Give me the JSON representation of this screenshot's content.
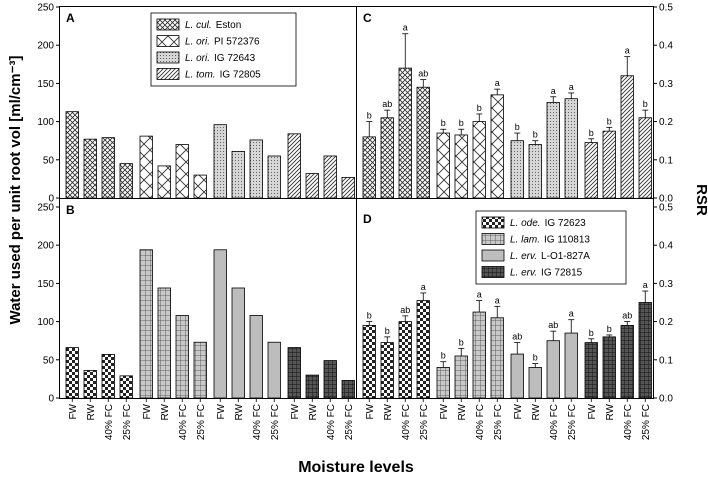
{
  "y_axis_label": "Water used per unit root vol [ml/cm⁻³]",
  "y2_axis_label": "RSR",
  "x_axis_label": "Moisture levels",
  "chart_data": [
    {
      "panel": "A",
      "type": "bar",
      "ylim": [
        0,
        250
      ],
      "yticks": [
        0,
        50,
        100,
        150,
        200,
        250
      ],
      "legend": [
        {
          "label": "Eston",
          "genus": "L. cul.",
          "pattern": "crosshatch"
        },
        {
          "label": "PI 572376",
          "genus": "L. ori.",
          "pattern": "diagcross"
        },
        {
          "label": "IG 72643",
          "genus": "L. ori.",
          "pattern": "dots"
        },
        {
          "label": "IG 72805",
          "genus": "L. tom.",
          "pattern": "diagonal"
        }
      ],
      "legend_position": "top-center",
      "groups": [
        {
          "name": "Eston",
          "pattern": "crosshatch",
          "values": [
            113,
            77,
            79,
            45
          ]
        },
        {
          "name": "PI 572376",
          "pattern": "diagcross",
          "values": [
            81,
            42,
            70,
            30
          ]
        },
        {
          "name": "IG 72643",
          "pattern": "dots",
          "values": [
            96,
            61,
            76,
            55
          ]
        },
        {
          "name": "IG 72805",
          "pattern": "diagonal",
          "values": [
            84,
            32,
            55,
            27
          ]
        }
      ]
    },
    {
      "panel": "B",
      "type": "bar",
      "ylim": [
        0,
        250
      ],
      "yticks": [
        0,
        50,
        100,
        150,
        200,
        250
      ],
      "categories": [
        "FW",
        "RW",
        "40% FC",
        "25% FC"
      ],
      "groups": [
        {
          "name": "IG 72623",
          "pattern": "checker",
          "values": [
            66,
            36,
            57,
            29
          ]
        },
        {
          "name": "IG 110813",
          "pattern": "grid",
          "values": [
            194,
            144,
            108,
            73
          ]
        },
        {
          "name": "L-O1-827A",
          "pattern": "solidgray",
          "values": [
            194,
            144,
            108,
            73
          ]
        },
        {
          "name": "IG 72815",
          "pattern": "darkgrid",
          "values": [
            66,
            30,
            49,
            23
          ]
        }
      ]
    },
    {
      "panel": "C",
      "type": "bar",
      "ylim": [
        0,
        0.5
      ],
      "yticks": [
        0.0,
        0.1,
        0.2,
        0.3,
        0.4,
        0.5
      ],
      "ylabel": "RSR",
      "groups": [
        {
          "name": "Eston",
          "pattern": "crosshatch",
          "values": [
            0.16,
            0.21,
            0.34,
            0.29
          ],
          "errors": [
            0.04,
            0.02,
            0.09,
            0.02
          ],
          "letters": [
            "b",
            "ab",
            "a",
            "ab"
          ]
        },
        {
          "name": "PI 572376",
          "pattern": "diagcross",
          "values": [
            0.17,
            0.165,
            0.2,
            0.27
          ],
          "errors": [
            0.01,
            0.015,
            0.02,
            0.015
          ],
          "letters": [
            "b",
            "b",
            "b",
            "a"
          ]
        },
        {
          "name": "IG 72643",
          "pattern": "dots",
          "values": [
            0.15,
            0.14,
            0.25,
            0.26
          ],
          "errors": [
            0.02,
            0.01,
            0.015,
            0.015
          ],
          "letters": [
            "b",
            "b",
            "a",
            "a"
          ]
        },
        {
          "name": "IG 72805",
          "pattern": "diagonal",
          "values": [
            0.145,
            0.175,
            0.32,
            0.21
          ],
          "errors": [
            0.01,
            0.01,
            0.05,
            0.02
          ],
          "letters": [
            "b",
            "b",
            "a",
            "b"
          ]
        }
      ]
    },
    {
      "panel": "D",
      "type": "bar",
      "ylim": [
        0,
        0.5
      ],
      "yticks": [
        0.0,
        0.1,
        0.2,
        0.3,
        0.4,
        0.5
      ],
      "ylabel": "RSR",
      "categories": [
        "FW",
        "RW",
        "40% FC",
        "25% FC"
      ],
      "legend": [
        {
          "label": "IG 72623",
          "genus": "L. ode.",
          "pattern": "checker"
        },
        {
          "label": "IG 110813",
          "genus": "L. lam.",
          "pattern": "grid"
        },
        {
          "label": "L-O1-827A",
          "genus": "L. erv.",
          "pattern": "solidgray"
        },
        {
          "label": "IG 72815",
          "genus": "L. erv.",
          "pattern": "darkgrid"
        }
      ],
      "legend_position": "top-right",
      "groups": [
        {
          "name": "IG 72623",
          "pattern": "checker",
          "values": [
            0.19,
            0.145,
            0.2,
            0.255
          ],
          "errors": [
            0.01,
            0.015,
            0.015,
            0.02
          ],
          "letters": [
            "b",
            "b",
            "ab",
            "a"
          ]
        },
        {
          "name": "IG 110813",
          "pattern": "grid",
          "values": [
            0.08,
            0.11,
            0.225,
            0.21
          ],
          "errors": [
            0.015,
            0.02,
            0.03,
            0.03
          ],
          "letters": [
            "b",
            "b",
            "a",
            "a"
          ]
        },
        {
          "name": "L-O1-827A",
          "pattern": "solidgray",
          "values": [
            0.115,
            0.08,
            0.15,
            0.17
          ],
          "errors": [
            0.03,
            0.01,
            0.025,
            0.035
          ],
          "letters": [
            "ab",
            "b",
            "ab",
            "a"
          ]
        },
        {
          "name": "IG 72815",
          "pattern": "darkgrid",
          "values": [
            0.145,
            0.16,
            0.19,
            0.25
          ],
          "errors": [
            0.01,
            0.005,
            0.01,
            0.03
          ],
          "letters": [
            "b",
            "b",
            "ab",
            "a"
          ]
        }
      ]
    }
  ]
}
